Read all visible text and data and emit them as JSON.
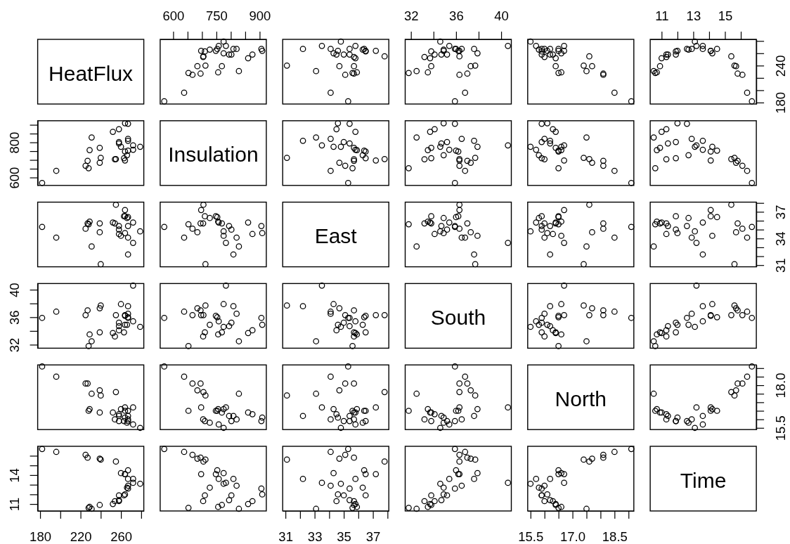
{
  "chart_data": [
    {
      "type": "other",
      "title": "HeatFlux"
    },
    {
      "type": "scatter",
      "x": [
        783,
        748,
        684,
        828,
        860,
        875,
        909,
        906,
        756,
        769,
        794,
        802,
        820,
        809,
        775,
        712,
        695,
        638,
        775,
        758,
        753,
        705,
        667,
        569,
        653,
        704,
        710,
        727,
        697
      ],
      "values": [
        272,
        264,
        239,
        231,
        252,
        258,
        264,
        267,
        229,
        239,
        258,
        258,
        267,
        267,
        260,
        240,
        227,
        196,
        279,
        272,
        267,
        255,
        225,
        182,
        228,
        254,
        263,
        266,
        264
      ],
      "xlim": [
        554.9,
        923.1
      ],
      "ylim": [
        177.6,
        282.6
      ],
      "xticks": [
        600,
        {
          "value": 650,
          "label": null
        },
        {
          "value": 700,
          "label": null
        },
        750,
        {
          "value": 800,
          "label": null
        },
        {
          "value": 850,
          "label": null
        },
        900
      ],
      "tick_labels": "x",
      "color": "#000000",
      "marker": "circle"
    },
    {
      "type": "scatter",
      "x": [
        33.5,
        36.5,
        34.7,
        33.1,
        35.8,
        34.5,
        34.6,
        35.4,
        35.9,
        35.7,
        35.4,
        35.0,
        34.1,
        32.2,
        34.3,
        31.1,
        35.7,
        34.1,
        34.8,
        35.8,
        36.4,
        37.8,
        35.1,
        35.3,
        35.6,
        35.7,
        36.5,
        36.3,
        37.2
      ],
      "values": [
        272,
        264,
        239,
        231,
        252,
        258,
        264,
        267,
        229,
        239,
        258,
        258,
        267,
        267,
        260,
        240,
        227,
        196,
        279,
        272,
        267,
        255,
        225,
        182,
        228,
        254,
        263,
        266,
        264
      ],
      "xlim": [
        30.81,
        38.09
      ],
      "ylim": [
        177.6,
        282.6
      ],
      "tick_labels": false,
      "color": "#000000",
      "marker": "circle"
    },
    {
      "type": "scatter",
      "x": [
        40.6,
        36.2,
        37.3,
        32.5,
        33.7,
        34.1,
        34.9,
        35.9,
        33.5,
        33.8,
        34.7,
        35.2,
        36.5,
        37.6,
        37.9,
        37.7,
        37.0,
        36.8,
        34.6,
        35.4,
        36.0,
        36.3,
        36.3,
        35.9,
        31.8,
        33.2,
        33.8,
        34.9,
        36.3
      ],
      "values": [
        272,
        264,
        239,
        231,
        252,
        258,
        264,
        267,
        229,
        239,
        258,
        258,
        267,
        267,
        260,
        240,
        227,
        196,
        279,
        272,
        267,
        255,
        225,
        182,
        228,
        254,
        263,
        266,
        264
      ],
      "xlim": [
        31.49,
        40.9
      ],
      "ylim": [
        177.6,
        282.6
      ],
      "xticks": [
        32,
        {
          "value": 34,
          "label": null
        },
        36,
        {
          "value": 38,
          "label": null
        },
        40
      ],
      "tick_labels": "x",
      "color": "#000000",
      "marker": "circle"
    },
    {
      "type": "scatter",
      "x": [
        16.7,
        16.5,
        17.7,
        17.5,
        16.4,
        16.3,
        16.1,
        15.9,
        16.6,
        16.4,
        16.2,
        15.9,
        16.0,
        16.2,
        16.6,
        17.4,
        18.1,
        18.5,
        15.5,
        15.7,
        16.5,
        17.6,
        18.1,
        19.1,
        16.5,
        16.0,
        15.9,
        15.8,
        16.7
      ],
      "values": [
        272,
        264,
        239,
        231,
        252,
        258,
        264,
        267,
        229,
        239,
        258,
        258,
        267,
        267,
        260,
        240,
        227,
        196,
        279,
        272,
        267,
        255,
        225,
        182,
        228,
        254,
        263,
        266,
        264
      ],
      "xlim": [
        15.4,
        19.19
      ],
      "ylim": [
        177.6,
        282.6
      ],
      "tick_labels": false,
      "color": "#000000",
      "marker": "circle"
    },
    {
      "type": "scatter",
      "x": [
        13.2,
        14.1,
        15.7,
        10.5,
        11.0,
        11.3,
        12.0,
        12.6,
        10.7,
        10.9,
        11.4,
        11.9,
        12.9,
        13.6,
        14.2,
        15.6,
        15.8,
        16.4,
        13.1,
        13.6,
        14.5,
        15.4,
        16.1,
        16.7,
        10.6,
        11.3,
        11.9,
        12.7,
        14.1
      ],
      "values": [
        272,
        264,
        239,
        231,
        252,
        258,
        264,
        267,
        229,
        239,
        258,
        258,
        267,
        267,
        260,
        240,
        227,
        196,
        279,
        272,
        267,
        255,
        225,
        182,
        228,
        254,
        263,
        266,
        264
      ],
      "xlim": [
        10.28,
        16.98
      ],
      "ylim": [
        177.6,
        282.6
      ],
      "xticks": [
        11,
        {
          "value": 12,
          "label": null
        },
        13,
        {
          "value": 14,
          "label": null
        },
        15,
        {
          "value": 16,
          "label": null
        }
      ],
      "yticks": [
        180,
        {
          "value": 200,
          "label": null
        },
        {
          "value": 220,
          "label": null
        },
        240,
        {
          "value": 260,
          "label": null
        },
        {
          "value": 280,
          "label": null
        }
      ],
      "color": "#000000",
      "marker": "circle"
    },
    {
      "type": "scatter",
      "x": [
        272,
        264,
        239,
        231,
        252,
        258,
        264,
        267,
        229,
        239,
        258,
        258,
        267,
        267,
        260,
        240,
        227,
        196,
        279,
        272,
        267,
        255,
        225,
        182,
        228,
        254,
        263,
        266,
        264
      ],
      "values": [
        783,
        748,
        684,
        828,
        860,
        875,
        909,
        906,
        756,
        769,
        794,
        802,
        820,
        809,
        775,
        712,
        695,
        638,
        775,
        758,
        753,
        705,
        667,
        569,
        653,
        704,
        710,
        727,
        697
      ],
      "xlim": [
        177.6,
        282.6
      ],
      "ylim": [
        554.9,
        923.1
      ],
      "yticks": [
        600,
        {
          "value": 650,
          "label": null
        },
        {
          "value": 700,
          "label": null
        },
        {
          "value": 750,
          "label": null
        },
        800,
        {
          "value": 850,
          "label": null
        },
        {
          "value": 900,
          "label": null
        }
      ],
      "tick_labels": "y",
      "color": "#000000",
      "marker": "circle"
    },
    {
      "type": "other",
      "title": "Insulation"
    },
    {
      "type": "scatter",
      "x": [
        33.5,
        36.5,
        34.7,
        33.1,
        35.8,
        34.5,
        34.6,
        35.4,
        35.9,
        35.7,
        35.4,
        35.0,
        34.1,
        32.2,
        34.3,
        31.1,
        35.7,
        34.1,
        34.8,
        35.8,
        36.4,
        37.8,
        35.1,
        35.3,
        35.6,
        35.7,
        36.5,
        36.3,
        37.2
      ],
      "values": [
        783,
        748,
        684,
        828,
        860,
        875,
        909,
        906,
        756,
        769,
        794,
        802,
        820,
        809,
        775,
        712,
        695,
        638,
        775,
        758,
        753,
        705,
        667,
        569,
        653,
        704,
        710,
        727,
        697
      ],
      "xlim": [
        30.81,
        38.09
      ],
      "ylim": [
        554.9,
        923.1
      ],
      "tick_labels": false,
      "color": "#000000",
      "marker": "circle"
    },
    {
      "type": "scatter",
      "x": [
        40.6,
        36.2,
        37.3,
        32.5,
        33.7,
        34.1,
        34.9,
        35.9,
        33.5,
        33.8,
        34.7,
        35.2,
        36.5,
        37.6,
        37.9,
        37.7,
        37.0,
        36.8,
        34.6,
        35.4,
        36.0,
        36.3,
        36.3,
        35.9,
        31.8,
        33.2,
        33.8,
        34.9,
        36.3
      ],
      "values": [
        783,
        748,
        684,
        828,
        860,
        875,
        909,
        906,
        756,
        769,
        794,
        802,
        820,
        809,
        775,
        712,
        695,
        638,
        775,
        758,
        753,
        705,
        667,
        569,
        653,
        704,
        710,
        727,
        697
      ],
      "xlim": [
        31.49,
        40.9
      ],
      "ylim": [
        554.9,
        923.1
      ],
      "tick_labels": false,
      "color": "#000000",
      "marker": "circle"
    },
    {
      "type": "scatter",
      "x": [
        16.7,
        16.5,
        17.7,
        17.5,
        16.4,
        16.3,
        16.1,
        15.9,
        16.6,
        16.4,
        16.2,
        15.9,
        16.0,
        16.2,
        16.6,
        17.4,
        18.1,
        18.5,
        15.5,
        15.7,
        16.5,
        17.6,
        18.1,
        19.1,
        16.5,
        16.0,
        15.9,
        15.8,
        16.7
      ],
      "values": [
        783,
        748,
        684,
        828,
        860,
        875,
        909,
        906,
        756,
        769,
        794,
        802,
        820,
        809,
        775,
        712,
        695,
        638,
        775,
        758,
        753,
        705,
        667,
        569,
        653,
        704,
        710,
        727,
        697
      ],
      "xlim": [
        15.4,
        19.19
      ],
      "ylim": [
        554.9,
        923.1
      ],
      "tick_labels": false,
      "color": "#000000",
      "marker": "circle"
    },
    {
      "type": "scatter",
      "x": [
        13.2,
        14.1,
        15.7,
        10.5,
        11.0,
        11.3,
        12.0,
        12.6,
        10.7,
        10.9,
        11.4,
        11.9,
        12.9,
        13.6,
        14.2,
        15.6,
        15.8,
        16.4,
        13.1,
        13.6,
        14.5,
        15.4,
        16.1,
        16.7,
        10.6,
        11.3,
        11.9,
        12.7,
        14.1
      ],
      "values": [
        783,
        748,
        684,
        828,
        860,
        875,
        909,
        906,
        756,
        769,
        794,
        802,
        820,
        809,
        775,
        712,
        695,
        638,
        775,
        758,
        753,
        705,
        667,
        569,
        653,
        704,
        710,
        727,
        697
      ],
      "xlim": [
        10.28,
        16.98
      ],
      "ylim": [
        554.9,
        923.1
      ],
      "tick_labels": false,
      "color": "#000000",
      "marker": "circle"
    },
    {
      "type": "scatter",
      "x": [
        272,
        264,
        239,
        231,
        252,
        258,
        264,
        267,
        229,
        239,
        258,
        258,
        267,
        267,
        260,
        240,
        227,
        196,
        279,
        272,
        267,
        255,
        225,
        182,
        228,
        254,
        263,
        266,
        264
      ],
      "values": [
        33.5,
        36.5,
        34.7,
        33.1,
        35.8,
        34.5,
        34.6,
        35.4,
        35.9,
        35.7,
        35.4,
        35.0,
        34.1,
        32.2,
        34.3,
        31.1,
        35.7,
        34.1,
        34.8,
        35.8,
        36.4,
        37.8,
        35.1,
        35.3,
        35.6,
        35.7,
        36.5,
        36.3,
        37.2
      ],
      "xlim": [
        177.6,
        282.6
      ],
      "ylim": [
        30.81,
        38.09
      ],
      "tick_labels": false,
      "color": "#000000",
      "marker": "circle"
    },
    {
      "type": "scatter",
      "x": [
        783,
        748,
        684,
        828,
        860,
        875,
        909,
        906,
        756,
        769,
        794,
        802,
        820,
        809,
        775,
        712,
        695,
        638,
        775,
        758,
        753,
        705,
        667,
        569,
        653,
        704,
        710,
        727,
        697
      ],
      "values": [
        33.5,
        36.5,
        34.7,
        33.1,
        35.8,
        34.5,
        34.6,
        35.4,
        35.9,
        35.7,
        35.4,
        35.0,
        34.1,
        32.2,
        34.3,
        31.1,
        35.7,
        34.1,
        34.8,
        35.8,
        36.4,
        37.8,
        35.1,
        35.3,
        35.6,
        35.7,
        36.5,
        36.3,
        37.2
      ],
      "xlim": [
        554.9,
        923.1
      ],
      "ylim": [
        30.81,
        38.09
      ],
      "tick_labels": false,
      "color": "#000000",
      "marker": "circle"
    },
    {
      "type": "other",
      "title": "East"
    },
    {
      "type": "scatter",
      "x": [
        40.6,
        36.2,
        37.3,
        32.5,
        33.7,
        34.1,
        34.9,
        35.9,
        33.5,
        33.8,
        34.7,
        35.2,
        36.5,
        37.6,
        37.9,
        37.7,
        37.0,
        36.8,
        34.6,
        35.4,
        36.0,
        36.3,
        36.3,
        35.9,
        31.8,
        33.2,
        33.8,
        34.9,
        36.3
      ],
      "values": [
        33.5,
        36.5,
        34.7,
        33.1,
        35.8,
        34.5,
        34.6,
        35.4,
        35.9,
        35.7,
        35.4,
        35.0,
        34.1,
        32.2,
        34.3,
        31.1,
        35.7,
        34.1,
        34.8,
        35.8,
        36.4,
        37.8,
        35.1,
        35.3,
        35.6,
        35.7,
        36.5,
        36.3,
        37.2
      ],
      "xlim": [
        31.49,
        40.9
      ],
      "ylim": [
        30.81,
        38.09
      ],
      "tick_labels": false,
      "color": "#000000",
      "marker": "circle"
    },
    {
      "type": "scatter",
      "x": [
        16.7,
        16.5,
        17.7,
        17.5,
        16.4,
        16.3,
        16.1,
        15.9,
        16.6,
        16.4,
        16.2,
        15.9,
        16.0,
        16.2,
        16.6,
        17.4,
        18.1,
        18.5,
        15.5,
        15.7,
        16.5,
        17.6,
        18.1,
        19.1,
        16.5,
        16.0,
        15.9,
        15.8,
        16.7
      ],
      "values": [
        33.5,
        36.5,
        34.7,
        33.1,
        35.8,
        34.5,
        34.6,
        35.4,
        35.9,
        35.7,
        35.4,
        35.0,
        34.1,
        32.2,
        34.3,
        31.1,
        35.7,
        34.1,
        34.8,
        35.8,
        36.4,
        37.8,
        35.1,
        35.3,
        35.6,
        35.7,
        36.5,
        36.3,
        37.2
      ],
      "xlim": [
        15.4,
        19.19
      ],
      "ylim": [
        30.81,
        38.09
      ],
      "tick_labels": false,
      "color": "#000000",
      "marker": "circle"
    },
    {
      "type": "scatter",
      "x": [
        13.2,
        14.1,
        15.7,
        10.5,
        11.0,
        11.3,
        12.0,
        12.6,
        10.7,
        10.9,
        11.4,
        11.9,
        12.9,
        13.6,
        14.2,
        15.6,
        15.8,
        16.4,
        13.1,
        13.6,
        14.5,
        15.4,
        16.1,
        16.7,
        10.6,
        11.3,
        11.9,
        12.7,
        14.1
      ],
      "values": [
        33.5,
        36.5,
        34.7,
        33.1,
        35.8,
        34.5,
        34.6,
        35.4,
        35.9,
        35.7,
        35.4,
        35.0,
        34.1,
        32.2,
        34.3,
        31.1,
        35.7,
        34.1,
        34.8,
        35.8,
        36.4,
        37.8,
        35.1,
        35.3,
        35.6,
        35.7,
        36.5,
        36.3,
        37.2
      ],
      "xlim": [
        10.28,
        16.98
      ],
      "ylim": [
        30.81,
        38.09
      ],
      "yticks": [
        31,
        {
          "value": 32,
          "label": null
        },
        {
          "value": 33,
          "label": null
        },
        34,
        {
          "value": 35,
          "label": null
        },
        {
          "value": 36,
          "label": null
        },
        37,
        {
          "value": 38,
          "label": null
        }
      ],
      "tick_labels": "y",
      "color": "#000000",
      "marker": "circle"
    },
    {
      "type": "scatter",
      "x": [
        272,
        264,
        239,
        231,
        252,
        258,
        264,
        267,
        229,
        239,
        258,
        258,
        267,
        267,
        260,
        240,
        227,
        196,
        279,
        272,
        267,
        255,
        225,
        182,
        228,
        254,
        263,
        266,
        264
      ],
      "values": [
        40.6,
        36.2,
        37.3,
        32.5,
        33.7,
        34.1,
        34.9,
        35.9,
        33.5,
        33.8,
        34.7,
        35.2,
        36.5,
        37.6,
        37.9,
        37.7,
        37.0,
        36.8,
        34.6,
        35.4,
        36.0,
        36.3,
        36.3,
        35.9,
        31.8,
        33.2,
        33.8,
        34.9,
        36.3
      ],
      "xlim": [
        177.6,
        282.6
      ],
      "ylim": [
        31.49,
        40.9
      ],
      "yticks": [
        32,
        {
          "value": 34,
          "label": null
        },
        36,
        {
          "value": 38,
          "label": null
        },
        40
      ],
      "tick_labels": "y",
      "color": "#000000",
      "marker": "circle"
    },
    {
      "type": "scatter",
      "x": [
        783,
        748,
        684,
        828,
        860,
        875,
        909,
        906,
        756,
        769,
        794,
        802,
        820,
        809,
        775,
        712,
        695,
        638,
        775,
        758,
        753,
        705,
        667,
        569,
        653,
        704,
        710,
        727,
        697
      ],
      "values": [
        40.6,
        36.2,
        37.3,
        32.5,
        33.7,
        34.1,
        34.9,
        35.9,
        33.5,
        33.8,
        34.7,
        35.2,
        36.5,
        37.6,
        37.9,
        37.7,
        37.0,
        36.8,
        34.6,
        35.4,
        36.0,
        36.3,
        36.3,
        35.9,
        31.8,
        33.2,
        33.8,
        34.9,
        36.3
      ],
      "xlim": [
        554.9,
        923.1
      ],
      "ylim": [
        31.49,
        40.9
      ],
      "tick_labels": false,
      "color": "#000000",
      "marker": "circle"
    },
    {
      "type": "scatter",
      "x": [
        33.5,
        36.5,
        34.7,
        33.1,
        35.8,
        34.5,
        34.6,
        35.4,
        35.9,
        35.7,
        35.4,
        35.0,
        34.1,
        32.2,
        34.3,
        31.1,
        35.7,
        34.1,
        34.8,
        35.8,
        36.4,
        37.8,
        35.1,
        35.3,
        35.6,
        35.7,
        36.5,
        36.3,
        37.2
      ],
      "values": [
        40.6,
        36.2,
        37.3,
        32.5,
        33.7,
        34.1,
        34.9,
        35.9,
        33.5,
        33.8,
        34.7,
        35.2,
        36.5,
        37.6,
        37.9,
        37.7,
        37.0,
        36.8,
        34.6,
        35.4,
        36.0,
        36.3,
        36.3,
        35.9,
        31.8,
        33.2,
        33.8,
        34.9,
        36.3
      ],
      "xlim": [
        30.81,
        38.09
      ],
      "ylim": [
        31.49,
        40.9
      ],
      "tick_labels": false,
      "color": "#000000",
      "marker": "circle"
    },
    {
      "type": "other",
      "title": "South"
    },
    {
      "type": "scatter",
      "x": [
        16.7,
        16.5,
        17.7,
        17.5,
        16.4,
        16.3,
        16.1,
        15.9,
        16.6,
        16.4,
        16.2,
        15.9,
        16.0,
        16.2,
        16.6,
        17.4,
        18.1,
        18.5,
        15.5,
        15.7,
        16.5,
        17.6,
        18.1,
        19.1,
        16.5,
        16.0,
        15.9,
        15.8,
        16.7
      ],
      "values": [
        40.6,
        36.2,
        37.3,
        32.5,
        33.7,
        34.1,
        34.9,
        35.9,
        33.5,
        33.8,
        34.7,
        35.2,
        36.5,
        37.6,
        37.9,
        37.7,
        37.0,
        36.8,
        34.6,
        35.4,
        36.0,
        36.3,
        36.3,
        35.9,
        31.8,
        33.2,
        33.8,
        34.9,
        36.3
      ],
      "xlim": [
        15.4,
        19.19
      ],
      "ylim": [
        31.49,
        40.9
      ],
      "tick_labels": false,
      "color": "#000000",
      "marker": "circle"
    },
    {
      "type": "scatter",
      "x": [
        13.2,
        14.1,
        15.7,
        10.5,
        11.0,
        11.3,
        12.0,
        12.6,
        10.7,
        10.9,
        11.4,
        11.9,
        12.9,
        13.6,
        14.2,
        15.6,
        15.8,
        16.4,
        13.1,
        13.6,
        14.5,
        15.4,
        16.1,
        16.7,
        10.6,
        11.3,
        11.9,
        12.7,
        14.1
      ],
      "values": [
        40.6,
        36.2,
        37.3,
        32.5,
        33.7,
        34.1,
        34.9,
        35.9,
        33.5,
        33.8,
        34.7,
        35.2,
        36.5,
        37.6,
        37.9,
        37.7,
        37.0,
        36.8,
        34.6,
        35.4,
        36.0,
        36.3,
        36.3,
        35.9,
        31.8,
        33.2,
        33.8,
        34.9,
        36.3
      ],
      "xlim": [
        10.28,
        16.98
      ],
      "ylim": [
        31.49,
        40.9
      ],
      "tick_labels": false,
      "color": "#000000",
      "marker": "circle"
    },
    {
      "type": "scatter",
      "x": [
        272,
        264,
        239,
        231,
        252,
        258,
        264,
        267,
        229,
        239,
        258,
        258,
        267,
        267,
        260,
        240,
        227,
        196,
        279,
        272,
        267,
        255,
        225,
        182,
        228,
        254,
        263,
        266,
        264
      ],
      "values": [
        16.7,
        16.5,
        17.7,
        17.5,
        16.4,
        16.3,
        16.1,
        15.9,
        16.6,
        16.4,
        16.2,
        15.9,
        16.0,
        16.2,
        16.6,
        17.4,
        18.1,
        18.5,
        15.5,
        15.7,
        16.5,
        17.6,
        18.1,
        19.1,
        16.5,
        16.0,
        15.9,
        15.8,
        16.7
      ],
      "xlim": [
        177.6,
        282.6
      ],
      "ylim": [
        15.4,
        19.19
      ],
      "tick_labels": false,
      "color": "#000000",
      "marker": "circle"
    },
    {
      "type": "scatter",
      "x": [
        783,
        748,
        684,
        828,
        860,
        875,
        909,
        906,
        756,
        769,
        794,
        802,
        820,
        809,
        775,
        712,
        695,
        638,
        775,
        758,
        753,
        705,
        667,
        569,
        653,
        704,
        710,
        727,
        697
      ],
      "values": [
        16.7,
        16.5,
        17.7,
        17.5,
        16.4,
        16.3,
        16.1,
        15.9,
        16.6,
        16.4,
        16.2,
        15.9,
        16.0,
        16.2,
        16.6,
        17.4,
        18.1,
        18.5,
        15.5,
        15.7,
        16.5,
        17.6,
        18.1,
        19.1,
        16.5,
        16.0,
        15.9,
        15.8,
        16.7
      ],
      "xlim": [
        554.9,
        923.1
      ],
      "ylim": [
        15.4,
        19.19
      ],
      "tick_labels": false,
      "color": "#000000",
      "marker": "circle"
    },
    {
      "type": "scatter",
      "x": [
        33.5,
        36.5,
        34.7,
        33.1,
        35.8,
        34.5,
        34.6,
        35.4,
        35.9,
        35.7,
        35.4,
        35.0,
        34.1,
        32.2,
        34.3,
        31.1,
        35.7,
        34.1,
        34.8,
        35.8,
        36.4,
        37.8,
        35.1,
        35.3,
        35.6,
        35.7,
        36.5,
        36.3,
        37.2
      ],
      "values": [
        16.7,
        16.5,
        17.7,
        17.5,
        16.4,
        16.3,
        16.1,
        15.9,
        16.6,
        16.4,
        16.2,
        15.9,
        16.0,
        16.2,
        16.6,
        17.4,
        18.1,
        18.5,
        15.5,
        15.7,
        16.5,
        17.6,
        18.1,
        19.1,
        16.5,
        16.0,
        15.9,
        15.8,
        16.7
      ],
      "xlim": [
        30.81,
        38.09
      ],
      "ylim": [
        15.4,
        19.19
      ],
      "tick_labels": false,
      "color": "#000000",
      "marker": "circle"
    },
    {
      "type": "scatter",
      "x": [
        40.6,
        36.2,
        37.3,
        32.5,
        33.7,
        34.1,
        34.9,
        35.9,
        33.5,
        33.8,
        34.7,
        35.2,
        36.5,
        37.6,
        37.9,
        37.7,
        37.0,
        36.8,
        34.6,
        35.4,
        36.0,
        36.3,
        36.3,
        35.9,
        31.8,
        33.2,
        33.8,
        34.9,
        36.3
      ],
      "values": [
        16.7,
        16.5,
        17.7,
        17.5,
        16.4,
        16.3,
        16.1,
        15.9,
        16.6,
        16.4,
        16.2,
        15.9,
        16.0,
        16.2,
        16.6,
        17.4,
        18.1,
        18.5,
        15.5,
        15.7,
        16.5,
        17.6,
        18.1,
        19.1,
        16.5,
        16.0,
        15.9,
        15.8,
        16.7
      ],
      "xlim": [
        31.49,
        40.9
      ],
      "ylim": [
        15.4,
        19.19
      ],
      "tick_labels": false,
      "color": "#000000",
      "marker": "circle"
    },
    {
      "type": "other",
      "title": "North"
    },
    {
      "type": "scatter",
      "x": [
        13.2,
        14.1,
        15.7,
        10.5,
        11.0,
        11.3,
        12.0,
        12.6,
        10.7,
        10.9,
        11.4,
        11.9,
        12.9,
        13.6,
        14.2,
        15.6,
        15.8,
        16.4,
        13.1,
        13.6,
        14.5,
        15.4,
        16.1,
        16.7,
        10.6,
        11.3,
        11.9,
        12.7,
        14.1
      ],
      "values": [
        16.7,
        16.5,
        17.7,
        17.5,
        16.4,
        16.3,
        16.1,
        15.9,
        16.6,
        16.4,
        16.2,
        15.9,
        16.0,
        16.2,
        16.6,
        17.4,
        18.1,
        18.5,
        15.5,
        15.7,
        16.5,
        17.6,
        18.1,
        19.1,
        16.5,
        16.0,
        15.9,
        15.8,
        16.7
      ],
      "xlim": [
        10.28,
        16.98
      ],
      "ylim": [
        15.4,
        19.19
      ],
      "yticks": [
        15.5,
        {
          "value": 16,
          "label": null
        },
        {
          "value": 16.5,
          "label": null
        },
        {
          "value": 17,
          "label": null
        },
        {
          "value": 17.5,
          "label": null
        },
        {
          "value": 18,
          "label": "18.0"
        },
        {
          "value": 18.5,
          "label": null
        },
        {
          "value": 19,
          "label": null
        }
      ],
      "tick_labels": "y",
      "color": "#000000",
      "marker": "circle"
    },
    {
      "type": "scatter",
      "x": [
        272,
        264,
        239,
        231,
        252,
        258,
        264,
        267,
        229,
        239,
        258,
        258,
        267,
        267,
        260,
        240,
        227,
        196,
        279,
        272,
        267,
        255,
        225,
        182,
        228,
        254,
        263,
        266,
        264
      ],
      "values": [
        13.2,
        14.1,
        15.7,
        10.5,
        11.0,
        11.3,
        12.0,
        12.6,
        10.7,
        10.9,
        11.4,
        11.9,
        12.9,
        13.6,
        14.2,
        15.6,
        15.8,
        16.4,
        13.1,
        13.6,
        14.5,
        15.4,
        16.1,
        16.7,
        10.6,
        11.3,
        11.9,
        12.7,
        14.1
      ],
      "xlim": [
        177.6,
        282.6
      ],
      "ylim": [
        10.28,
        16.98
      ],
      "xticks": [
        180,
        {
          "value": 200,
          "label": null
        },
        220,
        {
          "value": 240,
          "label": null
        },
        260,
        {
          "value": 280,
          "label": null
        }
      ],
      "yticks": [
        11,
        {
          "value": 12,
          "label": null
        },
        {
          "value": 13,
          "label": null
        },
        14,
        {
          "value": 15,
          "label": null
        },
        {
          "value": 16,
          "label": null
        }
      ],
      "color": "#000000",
      "marker": "circle"
    },
    {
      "type": "scatter",
      "x": [
        783,
        748,
        684,
        828,
        860,
        875,
        909,
        906,
        756,
        769,
        794,
        802,
        820,
        809,
        775,
        712,
        695,
        638,
        775,
        758,
        753,
        705,
        667,
        569,
        653,
        704,
        710,
        727,
        697
      ],
      "values": [
        13.2,
        14.1,
        15.7,
        10.5,
        11.0,
        11.3,
        12.0,
        12.6,
        10.7,
        10.9,
        11.4,
        11.9,
        12.9,
        13.6,
        14.2,
        15.6,
        15.8,
        16.4,
        13.1,
        13.6,
        14.5,
        15.4,
        16.1,
        16.7,
        10.6,
        11.3,
        11.9,
        12.7,
        14.1
      ],
      "xlim": [
        554.9,
        923.1
      ],
      "ylim": [
        10.28,
        16.98
      ],
      "tick_labels": false,
      "color": "#000000",
      "marker": "circle"
    },
    {
      "type": "scatter",
      "x": [
        33.5,
        36.5,
        34.7,
        33.1,
        35.8,
        34.5,
        34.6,
        35.4,
        35.9,
        35.7,
        35.4,
        35.0,
        34.1,
        32.2,
        34.3,
        31.1,
        35.7,
        34.1,
        34.8,
        35.8,
        36.4,
        37.8,
        35.1,
        35.3,
        35.6,
        35.7,
        36.5,
        36.3,
        37.2
      ],
      "values": [
        13.2,
        14.1,
        15.7,
        10.5,
        11.0,
        11.3,
        12.0,
        12.6,
        10.7,
        10.9,
        11.4,
        11.9,
        12.9,
        13.6,
        14.2,
        15.6,
        15.8,
        16.4,
        13.1,
        13.6,
        14.5,
        15.4,
        16.1,
        16.7,
        10.6,
        11.3,
        11.9,
        12.7,
        14.1
      ],
      "xlim": [
        30.81,
        38.09
      ],
      "ylim": [
        10.28,
        16.98
      ],
      "xticks": [
        31,
        {
          "value": 32,
          "label": null
        },
        33,
        {
          "value": 34,
          "label": null
        },
        35,
        {
          "value": 36,
          "label": null
        },
        37,
        {
          "value": 38,
          "label": null
        }
      ],
      "tick_labels": "x",
      "color": "#000000",
      "marker": "circle"
    },
    {
      "type": "scatter",
      "x": [
        40.6,
        36.2,
        37.3,
        32.5,
        33.7,
        34.1,
        34.9,
        35.9,
        33.5,
        33.8,
        34.7,
        35.2,
        36.5,
        37.6,
        37.9,
        37.7,
        37.0,
        36.8,
        34.6,
        35.4,
        36.0,
        36.3,
        36.3,
        35.9,
        31.8,
        33.2,
        33.8,
        34.9,
        36.3
      ],
      "values": [
        13.2,
        14.1,
        15.7,
        10.5,
        11.0,
        11.3,
        12.0,
        12.6,
        10.7,
        10.9,
        11.4,
        11.9,
        12.9,
        13.6,
        14.2,
        15.6,
        15.8,
        16.4,
        13.1,
        13.6,
        14.5,
        15.4,
        16.1,
        16.7,
        10.6,
        11.3,
        11.9,
        12.7,
        14.1
      ],
      "xlim": [
        31.49,
        40.9
      ],
      "ylim": [
        10.28,
        16.98
      ],
      "tick_labels": false,
      "color": "#000000",
      "marker": "circle"
    },
    {
      "type": "scatter",
      "x": [
        16.7,
        16.5,
        17.7,
        17.5,
        16.4,
        16.3,
        16.1,
        15.9,
        16.6,
        16.4,
        16.2,
        15.9,
        16.0,
        16.2,
        16.6,
        17.4,
        18.1,
        18.5,
        15.5,
        15.7,
        16.5,
        17.6,
        18.1,
        19.1,
        16.5,
        16.0,
        15.9,
        15.8,
        16.7
      ],
      "values": [
        13.2,
        14.1,
        15.7,
        10.5,
        11.0,
        11.3,
        12.0,
        12.6,
        10.7,
        10.9,
        11.4,
        11.9,
        12.9,
        13.6,
        14.2,
        15.6,
        15.8,
        16.4,
        13.1,
        13.6,
        14.5,
        15.4,
        16.1,
        16.7,
        10.6,
        11.3,
        11.9,
        12.7,
        14.1
      ],
      "xlim": [
        15.4,
        19.19
      ],
      "ylim": [
        10.28,
        16.98
      ],
      "xticks": [
        15.5,
        {
          "value": 16,
          "label": null
        },
        {
          "value": 16.5,
          "label": null
        },
        {
          "value": 17,
          "label": "17.0"
        },
        {
          "value": 17.5,
          "label": null
        },
        {
          "value": 18,
          "label": null
        },
        18.5,
        {
          "value": 19,
          "label": null
        }
      ],
      "tick_labels": "x",
      "color": "#000000",
      "marker": "circle"
    },
    {
      "type": "other",
      "title": "Time"
    }
  ]
}
